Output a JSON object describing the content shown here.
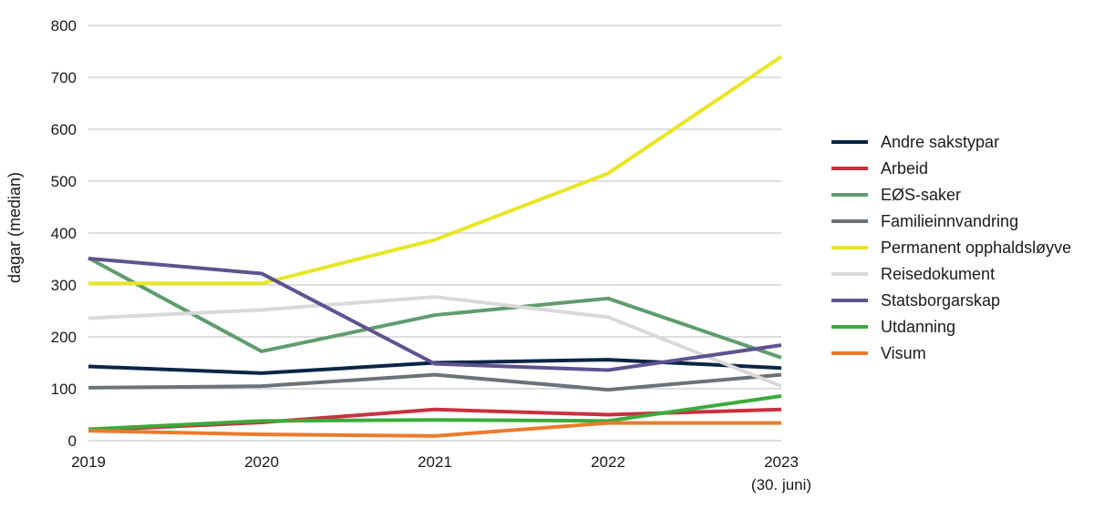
{
  "chart_data": {
    "type": "line",
    "x": [
      "2019",
      "2020",
      "2021",
      "2022",
      "2023"
    ],
    "x_sublabels": [
      "",
      "",
      "",
      "",
      "(30. juni)"
    ],
    "ylabel": "dagar (median)",
    "xlabel": "",
    "ylim": [
      0,
      800
    ],
    "yticks": [
      0,
      100,
      200,
      300,
      400,
      500,
      600,
      700,
      800
    ],
    "grid": true,
    "legend_position": "right",
    "series": [
      {
        "name": "Andre sakstypar",
        "color": "#0b2545",
        "values": [
          143,
          130,
          150,
          156,
          140
        ]
      },
      {
        "name": "Arbeid",
        "color": "#c9303e",
        "values": [
          20,
          35,
          60,
          50,
          60
        ]
      },
      {
        "name": "EØS-saker",
        "color": "#5f9c6e",
        "values": [
          352,
          172,
          242,
          274,
          160
        ]
      },
      {
        "name": "Familieinnvandring",
        "color": "#6a7378",
        "values": [
          102,
          105,
          127,
          98,
          127
        ]
      },
      {
        "name": "Permanent opphaldsløyve",
        "color": "#e8e623",
        "values": [
          303,
          303,
          387,
          515,
          740
        ]
      },
      {
        "name": "Reisedokument",
        "color": "#d9d9d9",
        "values": [
          236,
          252,
          277,
          238,
          105
        ]
      },
      {
        "name": "Statsborgarskap",
        "color": "#5e5390",
        "values": [
          351,
          322,
          148,
          136,
          184
        ]
      },
      {
        "name": "Utdanning",
        "color": "#3bab3b",
        "values": [
          22,
          38,
          40,
          38,
          86
        ]
      },
      {
        "name": "Visum",
        "color": "#ec7a2c",
        "values": [
          19,
          12,
          9,
          34,
          34
        ]
      }
    ]
  }
}
